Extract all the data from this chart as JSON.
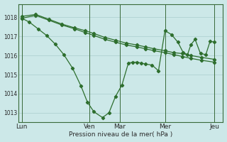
{
  "xlabel": "Pression niveau de la mer( hPa )",
  "bg_color": "#cce8e8",
  "line_color": "#2d6e2d",
  "grid_color": "#aacece",
  "ylim": [
    1012.5,
    1018.7
  ],
  "xlim": [
    0,
    9.5
  ],
  "xtick_labels": [
    "Lun",
    "Ven",
    "Mar",
    "Mer",
    "Jeu"
  ],
  "xtick_positions": [
    0.15,
    3.3,
    4.7,
    6.8,
    9.1
  ],
  "ytick_vals": [
    1013,
    1014,
    1015,
    1016,
    1017,
    1018
  ],
  "trend1_x": [
    0.15,
    0.8,
    1.4,
    2.0,
    2.6,
    3.1,
    3.5,
    4.0,
    4.5,
    5.0,
    5.5,
    5.9,
    6.3,
    6.8,
    7.2,
    7.6,
    8.0,
    8.5,
    9.1
  ],
  "trend1_y": [
    1018.05,
    1018.15,
    1017.9,
    1017.65,
    1017.45,
    1017.3,
    1017.15,
    1016.95,
    1016.8,
    1016.65,
    1016.55,
    1016.45,
    1016.35,
    1016.25,
    1016.15,
    1016.1,
    1016.0,
    1015.9,
    1015.8
  ],
  "trend2_x": [
    0.15,
    0.8,
    1.4,
    2.0,
    2.6,
    3.1,
    3.5,
    4.0,
    4.5,
    5.0,
    5.5,
    5.9,
    6.3,
    6.8,
    7.2,
    7.6,
    8.0,
    8.5,
    9.1
  ],
  "trend2_y": [
    1017.95,
    1018.1,
    1017.85,
    1017.6,
    1017.4,
    1017.2,
    1017.05,
    1016.85,
    1016.7,
    1016.55,
    1016.45,
    1016.35,
    1016.25,
    1016.15,
    1016.05,
    1015.95,
    1015.85,
    1015.75,
    1015.65
  ],
  "main_x": [
    0.15,
    0.5,
    0.9,
    1.3,
    1.7,
    2.1,
    2.5,
    2.9,
    3.2,
    3.5,
    3.9,
    4.2,
    4.5,
    4.8,
    5.1,
    5.3,
    5.5,
    5.7,
    5.9,
    6.2,
    6.5,
    6.8,
    7.1,
    7.4,
    7.65,
    7.85,
    8.0,
    8.2,
    8.45,
    8.7,
    8.9,
    9.1
  ],
  "main_y": [
    1017.95,
    1017.75,
    1017.4,
    1017.05,
    1016.6,
    1016.05,
    1015.35,
    1014.4,
    1013.55,
    1013.05,
    1012.75,
    1013.0,
    1013.85,
    1014.45,
    1015.6,
    1015.65,
    1015.65,
    1015.6,
    1015.55,
    1015.5,
    1015.2,
    1017.3,
    1017.1,
    1016.7,
    1016.15,
    1016.05,
    1016.55,
    1016.85,
    1016.1,
    1016.05,
    1016.75,
    1016.7
  ]
}
